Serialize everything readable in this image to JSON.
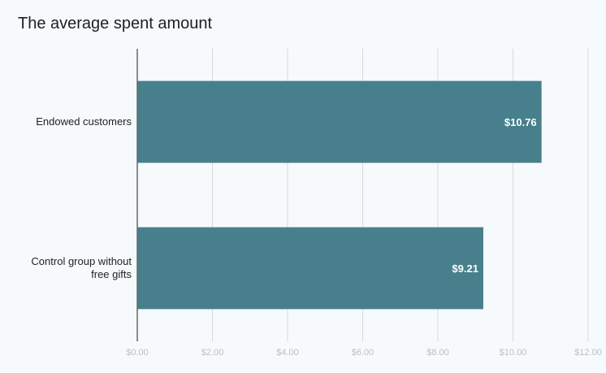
{
  "chart_data": {
    "type": "bar",
    "orientation": "horizontal",
    "title": "The average spent amount",
    "categories": [
      [
        "Endowed customers"
      ],
      [
        "Control group without",
        "free gifts"
      ]
    ],
    "values": [
      10.76,
      9.21
    ],
    "data_labels": [
      "$10.76",
      "$9.21"
    ],
    "xlim": [
      0,
      12
    ],
    "xticks": [
      0,
      2,
      4,
      6,
      8,
      10,
      12
    ],
    "xtick_labels": [
      "$0.00",
      "$2.00",
      "$4.00",
      "$6.00",
      "$8.00",
      "$10.00",
      "$12.00"
    ],
    "xlabel": "",
    "ylabel": "",
    "grid": true,
    "legend": "none",
    "colors": {
      "bar": "#47808c",
      "grid": "#d6d9dc",
      "axis": "#666666",
      "background": "#f6fafc"
    }
  }
}
